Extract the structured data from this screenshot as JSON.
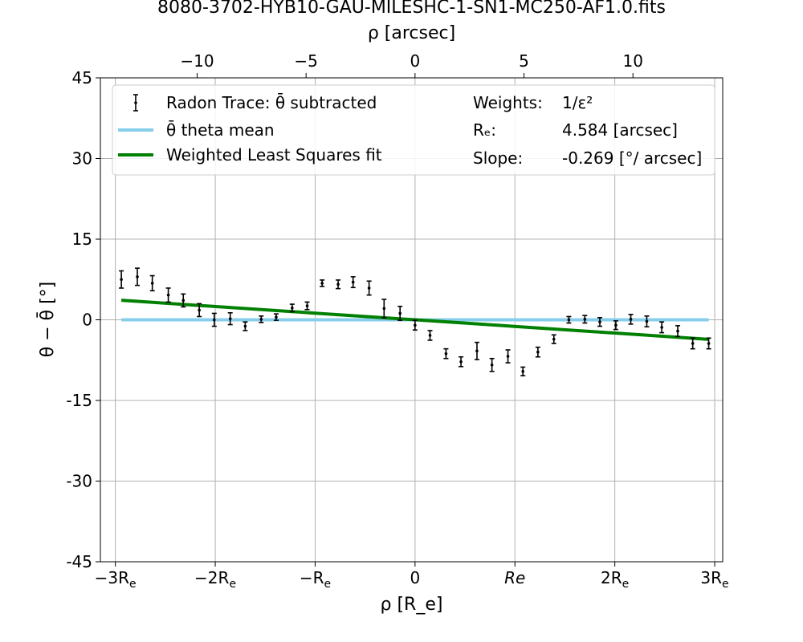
{
  "chart_data": {
    "type": "scatter",
    "title": "8080-3702-HYB10-GAU-MILESHC-1-SN1-MC250-AF1.0.fits",
    "xlabel": "ρ [R_e]",
    "xlabel_top": "ρ [arcsec]",
    "ylabel": "θ − θ̄ [°]",
    "xlim": [
      -3.15,
      3.08
    ],
    "ylim": [
      -45,
      45
    ],
    "grid": true,
    "legend_position": "top",
    "x_ticks_bottom": [
      {
        "value": -3,
        "label": "−3R"
      },
      {
        "value": -2,
        "label": "−2R"
      },
      {
        "value": -1,
        "label": "−R"
      },
      {
        "value": 0,
        "label": "0"
      },
      {
        "value": 1,
        "label": "Re"
      },
      {
        "value": 2,
        "label": "2R"
      },
      {
        "value": 3,
        "label": "3R"
      }
    ],
    "x_ticks_bottom_subscript": "e",
    "x_ticks_top": [
      {
        "value": -10,
        "label": "−10"
      },
      {
        "value": -5,
        "label": "−5"
      },
      {
        "value": 0,
        "label": "0"
      },
      {
        "value": 5,
        "label": "5"
      },
      {
        "value": 10,
        "label": "10"
      }
    ],
    "y_ticks": [
      {
        "value": 45,
        "label": "45"
      },
      {
        "value": 30,
        "label": "30"
      },
      {
        "value": 15,
        "label": "15"
      },
      {
        "value": 0,
        "label": "0"
      },
      {
        "value": -15,
        "label": "-15"
      },
      {
        "value": -30,
        "label": "-30"
      },
      {
        "value": -45,
        "label": "-45"
      }
    ],
    "Re_arcsec": 4.584,
    "series": [
      {
        "name": "Radon Trace: θ̄ subtracted",
        "kind": "errorbar",
        "color": "#000000",
        "x": [
          -2.94,
          -2.78,
          -2.63,
          -2.47,
          -2.32,
          -2.16,
          -2.01,
          -1.85,
          -1.7,
          -1.54,
          -1.39,
          -1.23,
          -1.08,
          -0.93,
          -0.77,
          -0.62,
          -0.46,
          -0.31,
          -0.15,
          0.0,
          0.15,
          0.31,
          0.46,
          0.62,
          0.77,
          0.93,
          1.08,
          1.23,
          1.39,
          1.54,
          1.7,
          1.85,
          2.01,
          2.16,
          2.32,
          2.47,
          2.63,
          2.78,
          2.94
        ],
        "y": [
          7.5,
          8.0,
          6.8,
          4.6,
          3.6,
          1.8,
          0.0,
          0.2,
          -1.2,
          0.1,
          0.5,
          2.2,
          2.6,
          6.8,
          6.6,
          7.0,
          5.9,
          2.1,
          1.2,
          -1.0,
          -2.9,
          -6.3,
          -7.8,
          -5.8,
          -8.4,
          -6.8,
          -9.6,
          -6.0,
          -3.6,
          0.0,
          0.1,
          -0.4,
          -1.0,
          0.1,
          -0.3,
          -1.4,
          -2.1,
          -4.4,
          -4.4
        ],
        "yerr": [
          1.6,
          1.6,
          1.4,
          1.3,
          1.2,
          1.2,
          1.2,
          1.1,
          0.8,
          0.6,
          0.6,
          0.7,
          0.7,
          0.6,
          0.8,
          1.0,
          1.3,
          1.7,
          1.3,
          0.9,
          0.9,
          0.9,
          0.9,
          1.6,
          1.2,
          1.2,
          0.8,
          0.9,
          0.8,
          0.6,
          0.7,
          0.8,
          0.8,
          0.9,
          1.0,
          1.0,
          1.0,
          1.0,
          1.0
        ]
      },
      {
        "name": "θ̄ theta mean",
        "kind": "line",
        "color": "#87ceeb",
        "x": [
          -2.94,
          2.94
        ],
        "y": [
          0,
          0
        ]
      },
      {
        "name": "Weighted Least Squares fit",
        "kind": "line",
        "color": "#008000",
        "x": [
          -2.94,
          2.94
        ],
        "y": [
          3.63,
          -3.63
        ]
      }
    ],
    "legend_entries": [
      {
        "label": "Radon Trace: θ̄ subtracted",
        "color": "#000000",
        "kind": "errorbar"
      },
      {
        "label": "θ̄ theta mean",
        "color": "#87ceeb",
        "kind": "line"
      },
      {
        "label": "Weighted Least Squares fit",
        "color": "#008000",
        "kind": "line"
      }
    ],
    "annotations": [
      {
        "key": "Weights:",
        "value": "1/ε²"
      },
      {
        "key": "Rₑ:",
        "value": "4.584 [arcsec]"
      },
      {
        "key": "Slope:",
        "value": "-0.269 [°/ arcsec]"
      }
    ]
  }
}
